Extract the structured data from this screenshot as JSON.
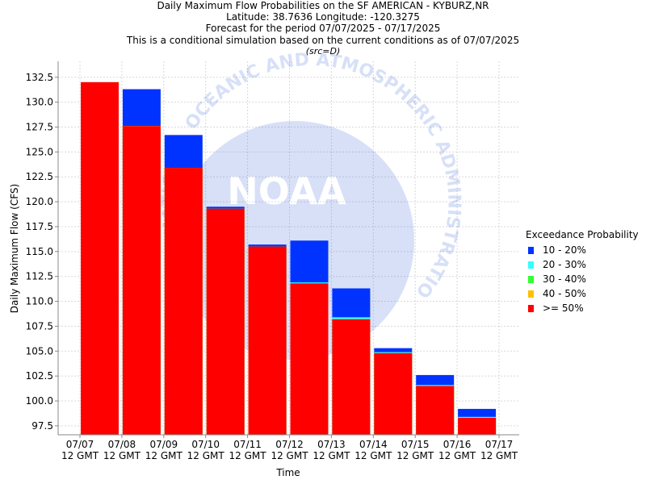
{
  "titles": {
    "line1": "Daily Maximum Flow Probabilities on the SF AMERICAN - KYBURZ,NR",
    "line2": "Latitude: 38.7636 Longitude: -120.3275",
    "line3": "Forecast for the period 07/07/2025 - 07/17/2025",
    "line4": "This is a conditional simulation based on the current conditions as of 07/07/2025",
    "line5": "(src=D)"
  },
  "watermark": {
    "text": "NOAA",
    "ring_text": "NATIONAL OCEANIC AND ATMOSPHERIC ADMINISTRATION"
  },
  "legend": {
    "title": "Exceedance Probability",
    "items": [
      {
        "label": "10 - 20%",
        "color": "#0033ff"
      },
      {
        "label": "20 - 30%",
        "color": "#33ffff"
      },
      {
        "label": "30 - 40%",
        "color": "#33ff33"
      },
      {
        "label": "40 - 50%",
        "color": "#ffc000"
      },
      {
        "label": ">= 50%",
        "color": "#ff0000"
      }
    ]
  },
  "chart_data": {
    "type": "bar",
    "stacked": true,
    "xlabel": "Time",
    "ylabel": "Daily Maximum Flow (CFS)",
    "ylim": [
      96.6,
      134.1
    ],
    "yticks": [
      97.5,
      100.0,
      102.5,
      105.0,
      107.5,
      110.0,
      112.5,
      115.0,
      117.5,
      120.0,
      122.5,
      125.0,
      127.5,
      130.0,
      132.5
    ],
    "xticks": [
      {
        "l1": "07/07",
        "l2": "12 GMT"
      },
      {
        "l1": "07/08",
        "l2": "12 GMT"
      },
      {
        "l1": "07/09",
        "l2": "12 GMT"
      },
      {
        "l1": "07/10",
        "l2": "12 GMT"
      },
      {
        "l1": "07/11",
        "l2": "12 GMT"
      },
      {
        "l1": "07/12",
        "l2": "12 GMT"
      },
      {
        "l1": "07/13",
        "l2": "12 GMT"
      },
      {
        "l1": "07/14",
        "l2": "12 GMT"
      },
      {
        "l1": "07/15",
        "l2": "12 GMT"
      },
      {
        "l1": "07/16",
        "l2": "12 GMT"
      },
      {
        "l1": "07/17",
        "l2": "12 GMT"
      }
    ],
    "grid": true,
    "legend_position": "right",
    "bars": [
      {
        "p50": 132.0,
        "p40": 132.0,
        "p30": 132.0,
        "p20": 132.0,
        "p10": 132.0
      },
      {
        "p50": 127.6,
        "p40": 127.6,
        "p30": 127.6,
        "p20": 127.6,
        "p10": 131.3
      },
      {
        "p50": 123.4,
        "p40": 123.4,
        "p30": 123.4,
        "p20": 123.4,
        "p10": 126.7
      },
      {
        "p50": 119.3,
        "p40": 119.3,
        "p30": 119.3,
        "p20": 119.3,
        "p10": 119.5
      },
      {
        "p50": 115.5,
        "p40": 115.5,
        "p30": 115.5,
        "p20": 115.5,
        "p10": 115.7
      },
      {
        "p50": 111.8,
        "p40": 111.8,
        "p30": 111.8,
        "p20": 111.9,
        "p10": 116.1
      },
      {
        "p50": 108.2,
        "p40": 108.2,
        "p30": 108.2,
        "p20": 108.4,
        "p10": 111.3
      },
      {
        "p50": 104.8,
        "p40": 104.8,
        "p30": 104.8,
        "p20": 104.9,
        "p10": 105.3
      },
      {
        "p50": 101.5,
        "p40": 101.5,
        "p30": 101.5,
        "p20": 101.6,
        "p10": 102.6
      },
      {
        "p50": 98.3,
        "p40": 98.3,
        "p30": 98.3,
        "p20": 98.4,
        "p10": 99.2
      }
    ]
  }
}
